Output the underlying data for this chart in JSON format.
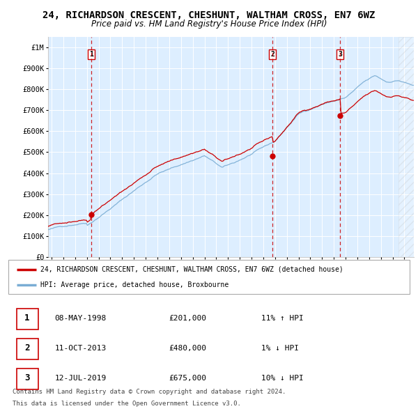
{
  "title": "24, RICHARDSON CRESCENT, CHESHUNT, WALTHAM CROSS, EN7 6WZ",
  "subtitle": "Price paid vs. HM Land Registry's House Price Index (HPI)",
  "title_fontsize": 10,
  "subtitle_fontsize": 8.5,
  "red_line_label": "24, RICHARDSON CRESCENT, CHESHUNT, WALTHAM CROSS, EN7 6WZ (detached house)",
  "blue_line_label": "HPI: Average price, detached house, Broxbourne",
  "red_color": "#cc0000",
  "blue_color": "#7aadd4",
  "plot_bg": "#ddeeff",
  "grid_color": "#ffffff",
  "dashed_color": "#cc0000",
  "ylim": [
    0,
    1050000
  ],
  "yticks": [
    0,
    100000,
    200000,
    300000,
    400000,
    500000,
    600000,
    700000,
    800000,
    900000,
    1000000
  ],
  "ytick_labels": [
    "£0",
    "£100K",
    "£200K",
    "£300K",
    "£400K",
    "£500K",
    "£600K",
    "£700K",
    "£800K",
    "£900K",
    "£1M"
  ],
  "xmin": 1994.7,
  "xmax": 2025.8,
  "sales": [
    {
      "num": 1,
      "date": "08-MAY-1998",
      "year": 1998.35,
      "price": 201000,
      "pct": "11%",
      "dir": "↑"
    },
    {
      "num": 2,
      "date": "11-OCT-2013",
      "year": 2013.78,
      "price": 480000,
      "pct": "1%",
      "dir": "↓"
    },
    {
      "num": 3,
      "date": "12-JUL-2019",
      "year": 2019.53,
      "price": 675000,
      "pct": "10%",
      "dir": "↓"
    }
  ],
  "footer1": "Contains HM Land Registry data © Crown copyright and database right 2024.",
  "footer2": "This data is licensed under the Open Government Licence v3.0.",
  "xtick_years": [
    1995,
    1996,
    1997,
    1998,
    1999,
    2000,
    2001,
    2002,
    2003,
    2004,
    2005,
    2006,
    2007,
    2008,
    2009,
    2010,
    2011,
    2012,
    2013,
    2014,
    2015,
    2016,
    2017,
    2018,
    2019,
    2020,
    2021,
    2022,
    2023,
    2024,
    2025
  ],
  "hatched_start": 2024.5
}
